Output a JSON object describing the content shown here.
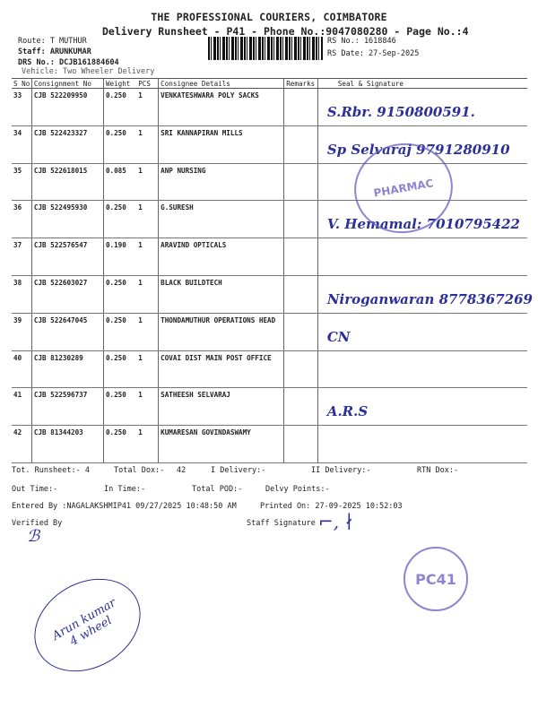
{
  "header": {
    "company": "THE PROFESSIONAL COURIERS, COIMBATORE",
    "subtitle": "Delivery Runsheet - P41 - Phone No.:9047080280 - Page No.:4",
    "route": "Route: T MUTHUR",
    "staff": "Staff: ARUNKUMAR",
    "drs": "DRS No.: DCJB161884604",
    "vehicle": "Vehicle: Two Wheeler Delivery",
    "rs_no": "RS No.: 1618846",
    "rs_date": "RS Date: 27-Sep-2025"
  },
  "columns": [
    "S No",
    "Consignment No",
    "Weight",
    "PCS",
    "Consignee Details",
    "Remarks",
    "Seal & Signature"
  ],
  "rows": [
    {
      "sno": "33",
      "cn": "CJB 522209950",
      "weight": "0.250",
      "pcs": "1",
      "consignee": "VENKATESHWARA POLY SACKS",
      "sign": "S.Rbr. 9150800591."
    },
    {
      "sno": "34",
      "cn": "CJB 522423327",
      "weight": "0.250",
      "pcs": "1",
      "consignee": "SRI KANNAPIRAN MILLS",
      "sign": "Sp Selvaraj 9791280910"
    },
    {
      "sno": "35",
      "cn": "CJB 522618015",
      "weight": "0.085",
      "pcs": "1",
      "consignee": "ANP NURSING",
      "sign": ""
    },
    {
      "sno": "36",
      "cn": "CJB 522495930",
      "weight": "0.250",
      "pcs": "1",
      "consignee": "G.SURESH",
      "sign": "V. Hemamal: 7010795422"
    },
    {
      "sno": "37",
      "cn": "CJB 522576547",
      "weight": "0.190",
      "pcs": "1",
      "consignee": "ARAVIND OPTICALS",
      "sign": ""
    },
    {
      "sno": "38",
      "cn": "CJB 522603027",
      "weight": "0.250",
      "pcs": "1",
      "consignee": "BLACK BUILDTECH",
      "sign": "Niroganwaran 8778367269"
    },
    {
      "sno": "39",
      "cn": "CJB 522647045",
      "weight": "0.250",
      "pcs": "1",
      "consignee": "THONDAMUTHUR OPERATIONS HEAD",
      "sign": "CN"
    },
    {
      "sno": "40",
      "cn": "CJB 81230289",
      "weight": "0.250",
      "pcs": "1",
      "consignee": "COVAI DIST MAIN POST OFFICE",
      "sign": ""
    },
    {
      "sno": "41",
      "cn": "CJB 522596737",
      "weight": "0.250",
      "pcs": "1",
      "consignee": "SATHEESH SELVARAJ",
      "sign": "A.R.S"
    },
    {
      "sno": "42",
      "cn": "CJB 81344203",
      "weight": "0.250",
      "pcs": "1",
      "consignee": "KUMARESAN GOVINDASWAMY",
      "sign": ""
    }
  ],
  "footer": {
    "tot_runsheet": "Tot. Runsheet:- 4",
    "total_dox": "Total Dox:-",
    "total_dox_val": "42",
    "i_delivery": "I Delivery:-",
    "ii_delivery": "II Delivery:-",
    "rtn_dox": "RTN Dox:-",
    "out_time": "Out Time:-",
    "in_time": "In Time:-",
    "total_pod": "Total POD:-",
    "delvy_points": "Delvy Points:-",
    "entered_by": "Entered By :NAGALAKSHMIP41 09/27/2025 10:48:50 AM",
    "printed_on": "Printed On: 27-09-2025 10:52:03",
    "verified_by": "Verified By",
    "staff_signature": "Staff Signature"
  },
  "stamps": {
    "pharmacy": "PHARMAC",
    "pc41": "PC41",
    "note": "Arun kumar 4 wheel"
  },
  "colors": {
    "ink": "#2b2f9a",
    "stamp": "#6a5bbf"
  }
}
